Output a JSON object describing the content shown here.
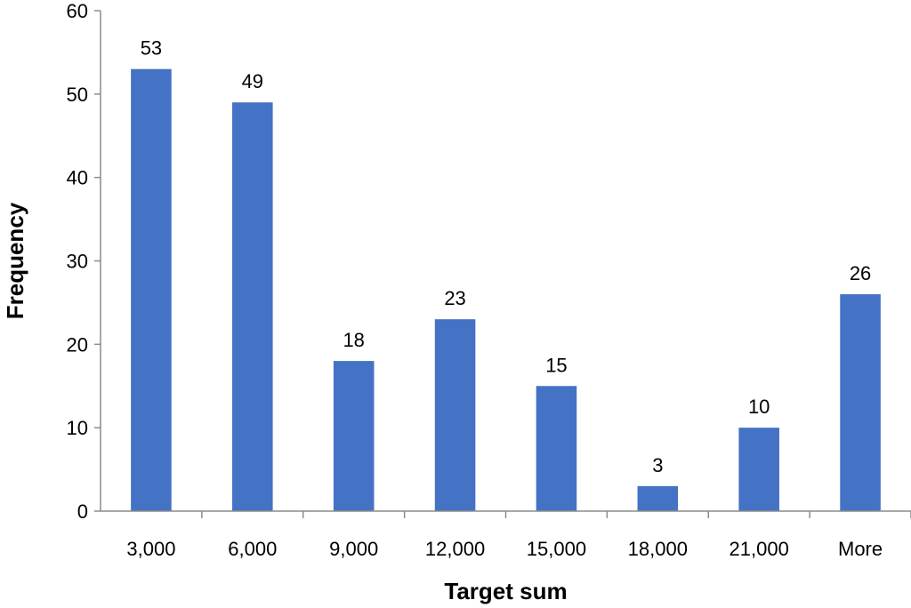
{
  "chart_data": {
    "type": "bar",
    "categories": [
      "3,000",
      "6,000",
      "9,000",
      "12,000",
      "15,000",
      "18,000",
      "21,000",
      "More"
    ],
    "values": [
      53,
      49,
      18,
      23,
      15,
      3,
      10,
      26
    ],
    "data_labels": [
      "53",
      "49",
      "18",
      "23",
      "15",
      "3",
      "10",
      "26"
    ],
    "xlabel": "Target sum",
    "ylabel": "Frequency",
    "ylim": [
      0,
      60
    ],
    "yticks": [
      0,
      10,
      20,
      30,
      40,
      50,
      60
    ],
    "ytick_labels": [
      "0",
      "10",
      "20",
      "30",
      "40",
      "50",
      "60"
    ],
    "grid": false,
    "legend": "none",
    "bar_color": "#4472C4"
  }
}
